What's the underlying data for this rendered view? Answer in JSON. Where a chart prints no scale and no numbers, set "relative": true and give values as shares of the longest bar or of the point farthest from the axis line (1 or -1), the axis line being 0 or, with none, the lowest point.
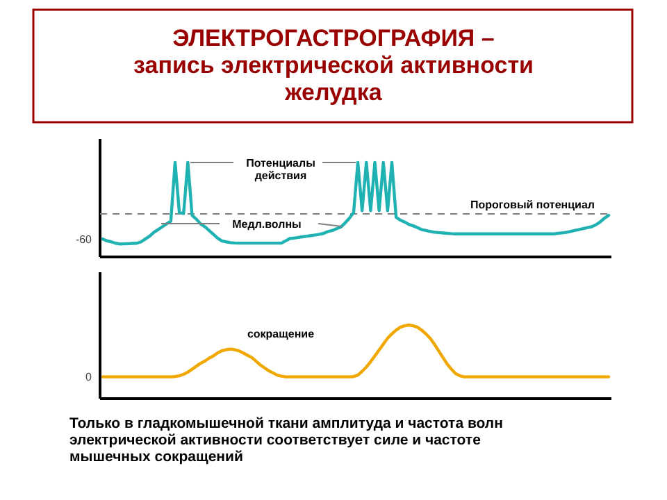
{
  "chart_data": [
    {
      "type": "line",
      "title": "ЭЛЕКТРОГАСТРОГРАФИЯ –\nзапись электрической активности\nжелудка",
      "relative": true,
      "marker": "none",
      "line_style": "solid",
      "categories": [
        null,
        null,
        null,
        null,
        null,
        null,
        null,
        null,
        null,
        null,
        null,
        null,
        null,
        null,
        null,
        null,
        null,
        null,
        null,
        null,
        null,
        null,
        null,
        null,
        null,
        null,
        null,
        null,
        null,
        null,
        null,
        null,
        null,
        null,
        null,
        null,
        null,
        null,
        null,
        null,
        null,
        null,
        null,
        null,
        null,
        null,
        null,
        null,
        null,
        null,
        null,
        null,
        null,
        null,
        null,
        null,
        null,
        null,
        null,
        null,
        null,
        null,
        null,
        null,
        null,
        null,
        null,
        null,
        null,
        null,
        null,
        null,
        null,
        null,
        null,
        null,
        null,
        null,
        null,
        null,
        null,
        null,
        null,
        null,
        null,
        null,
        null,
        null,
        null,
        null,
        null,
        null,
        null,
        null,
        null,
        null,
        null,
        null,
        null,
        null,
        null,
        null,
        null,
        null,
        null,
        null,
        null,
        null,
        null,
        null,
        null,
        null,
        null,
        null,
        null,
        null,
        null,
        null,
        null,
        null
      ],
      "series": [
        {
          "color": "#20b2b2",
          "values": [
            0.19,
            0.17,
            0.16,
            0.145,
            0.137,
            0.139,
            0.141,
            0.143,
            0.145,
            0.16,
            0.19,
            0.22,
            0.26,
            0.29,
            0.32,
            0.35,
            0.38,
            1,
            0.47,
            0.46,
            1,
            0.44,
            0.4,
            0.35,
            0.32,
            0.28,
            0.24,
            0.2,
            0.17,
            0.16,
            0.152,
            0.148,
            0.146,
            0.146,
            0.146,
            0.146,
            0.146,
            0.146,
            0.146,
            0.146,
            0.146,
            0.146,
            0.146,
            0.17,
            0.195,
            0.2,
            0.207,
            0.213,
            0.22,
            0.226,
            0.233,
            0.24,
            0.25,
            0.27,
            0.28,
            0.3,
            0.317,
            0.36,
            0.41,
            0.47,
            1,
            0.49,
            1,
            0.49,
            1,
            0.49,
            1,
            0.49,
            1,
            0.42,
            0.39,
            0.37,
            0.345,
            0.33,
            0.31,
            0.29,
            0.28,
            0.27,
            0.262,
            0.258,
            0.254,
            0.25,
            0.247,
            0.245,
            0.244,
            0.244,
            0.244,
            0.244,
            0.244,
            0.244,
            0.244,
            0.244,
            0.244,
            0.244,
            0.244,
            0.244,
            0.244,
            0.244,
            0.244,
            0.244,
            0.244,
            0.244,
            0.244,
            0.244,
            0.244,
            0.244,
            0.244,
            0.25,
            0.255,
            0.26,
            0.27,
            0.28,
            0.29,
            0.3,
            0.31,
            0.32,
            0.34,
            0.37,
            0.41,
            0.44
          ]
        }
      ],
      "ref_lines": [
        {
          "axis": "y",
          "value": 0.456,
          "label": "Пороговый потенциал",
          "color": "#808080",
          "line_style": "dashed"
        }
      ],
      "annotations": [
        "Потенциалы\nдействия",
        "Медл.волны",
        "-60"
      ]
    },
    {
      "type": "line",
      "relative": true,
      "marker": "none",
      "line_style": "solid",
      "categories": [
        null,
        null,
        null,
        null,
        null,
        null,
        null,
        null,
        null,
        null,
        null,
        null,
        null,
        null,
        null,
        null,
        null,
        null,
        null,
        null,
        null,
        null,
        null,
        null,
        null,
        null,
        null,
        null,
        null,
        null,
        null,
        null,
        null,
        null,
        null,
        null,
        null,
        null,
        null,
        null,
        null,
        null,
        null,
        null,
        null,
        null,
        null,
        null,
        null,
        null,
        null,
        null,
        null,
        null,
        null,
        null,
        null,
        null,
        null,
        null,
        null,
        null,
        null,
        null,
        null,
        null,
        null,
        null,
        null,
        null,
        null,
        null,
        null,
        null,
        null,
        null,
        null,
        null,
        null,
        null,
        null,
        null,
        null,
        null,
        null,
        null,
        null,
        null,
        null,
        null,
        null,
        null,
        null,
        null,
        null,
        null,
        null,
        null,
        null,
        null,
        null,
        null,
        null,
        null,
        null,
        null,
        null,
        null,
        null,
        null,
        null,
        null,
        null,
        null,
        null,
        null,
        null,
        null,
        null,
        null
      ],
      "series": [
        {
          "color": "#f0a800",
          "values": [
            0.296,
            0.296,
            0.296,
            0.296,
            0.296,
            0.296,
            0.296,
            0.296,
            0.296,
            0.296,
            0.296,
            0.296,
            0.296,
            0.296,
            0.296,
            0.296,
            0.296,
            0.3,
            0.31,
            0.33,
            0.36,
            0.4,
            0.44,
            0.48,
            0.51,
            0.55,
            0.58,
            0.62,
            0.65,
            0.665,
            0.673,
            0.665,
            0.65,
            0.62,
            0.59,
            0.56,
            0.51,
            0.46,
            0.42,
            0.38,
            0.35,
            0.32,
            0.305,
            0.296,
            0.296,
            0.296,
            0.296,
            0.296,
            0.296,
            0.296,
            0.296,
            0.296,
            0.296,
            0.296,
            0.296,
            0.296,
            0.296,
            0.296,
            0.296,
            0.3,
            0.32,
            0.37,
            0.43,
            0.5,
            0.58,
            0.66,
            0.74,
            0.82,
            0.88,
            0.93,
            0.97,
            0.99,
            1,
            0.99,
            0.97,
            0.93,
            0.88,
            0.82,
            0.74,
            0.65,
            0.56,
            0.47,
            0.4,
            0.34,
            0.31,
            0.296,
            0.296,
            0.296,
            0.296,
            0.296,
            0.296,
            0.296,
            0.296,
            0.296,
            0.296,
            0.296,
            0.296,
            0.296,
            0.296,
            0.296,
            0.296,
            0.296,
            0.296,
            0.296,
            0.296,
            0.296,
            0.296,
            0.296,
            0.296,
            0.296,
            0.296,
            0.296,
            0.296,
            0.296,
            0.296,
            0.296,
            0.296,
            0.296,
            0.296,
            0.296
          ]
        }
      ],
      "annotations": [
        "сокращение",
        "0",
        "Только в гладкомышечной ткани амплитуда и частота волн\nэлектрической активности соответствует силе и частоте\nмышечных сокращений"
      ]
    }
  ]
}
